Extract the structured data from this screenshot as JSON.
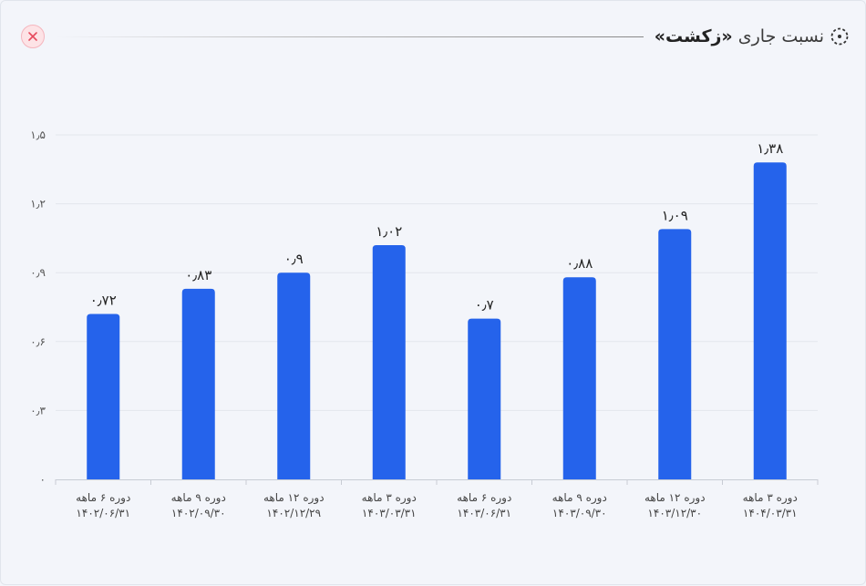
{
  "header": {
    "title_prefix": "نسبت جاری",
    "title_bold": "«زکشت»",
    "title_icon": "dashed-circle-dot-icon",
    "close_icon": "close-icon"
  },
  "colors": {
    "bar": "#2563eb",
    "grid": "#e3e6ec",
    "axis": "#c8ccd4",
    "close_accent": "#e64a5d"
  },
  "chart_data": {
    "type": "bar",
    "title": "نسبت جاری «زکشت»",
    "xlabel": "",
    "ylabel": "",
    "ylim": [
      0,
      1.5
    ],
    "y_ticks": [
      0,
      0.3,
      0.6,
      0.9,
      1.2,
      1.5
    ],
    "y_tick_labels": [
      "۰",
      "۰٫۳",
      "۰٫۶",
      "۰٫۹",
      "۱٫۲",
      "۱٫۵"
    ],
    "grid": true,
    "categories": [
      [
        "دوره ۶ ماهه",
        "۱۴۰۲/۰۶/۳۱"
      ],
      [
        "دوره ۹ ماهه",
        "۱۴۰۲/۰۹/۳۰"
      ],
      [
        "دوره ۱۲ ماهه",
        "۱۴۰۲/۱۲/۲۹"
      ],
      [
        "دوره ۳ ماهه",
        "۱۴۰۳/۰۳/۳۱"
      ],
      [
        "دوره ۶ ماهه",
        "۱۴۰۳/۰۶/۳۱"
      ],
      [
        "دوره ۹ ماهه",
        "۱۴۰۳/۰۹/۳۰"
      ],
      [
        "دوره ۱۲ ماهه",
        "۱۴۰۳/۱۲/۳۰"
      ],
      [
        "دوره ۳ ماهه",
        "۱۴۰۴/۰۳/۳۱"
      ]
    ],
    "values": [
      0.72,
      0.83,
      0.9,
      1.02,
      0.7,
      0.88,
      1.09,
      1.38
    ],
    "value_labels": [
      "۰٫۷۲",
      "۰٫۸۳",
      "۰٫۹",
      "۱٫۰۲",
      "۰٫۷",
      "۰٫۸۸",
      "۱٫۰۹",
      "۱٫۳۸"
    ]
  }
}
